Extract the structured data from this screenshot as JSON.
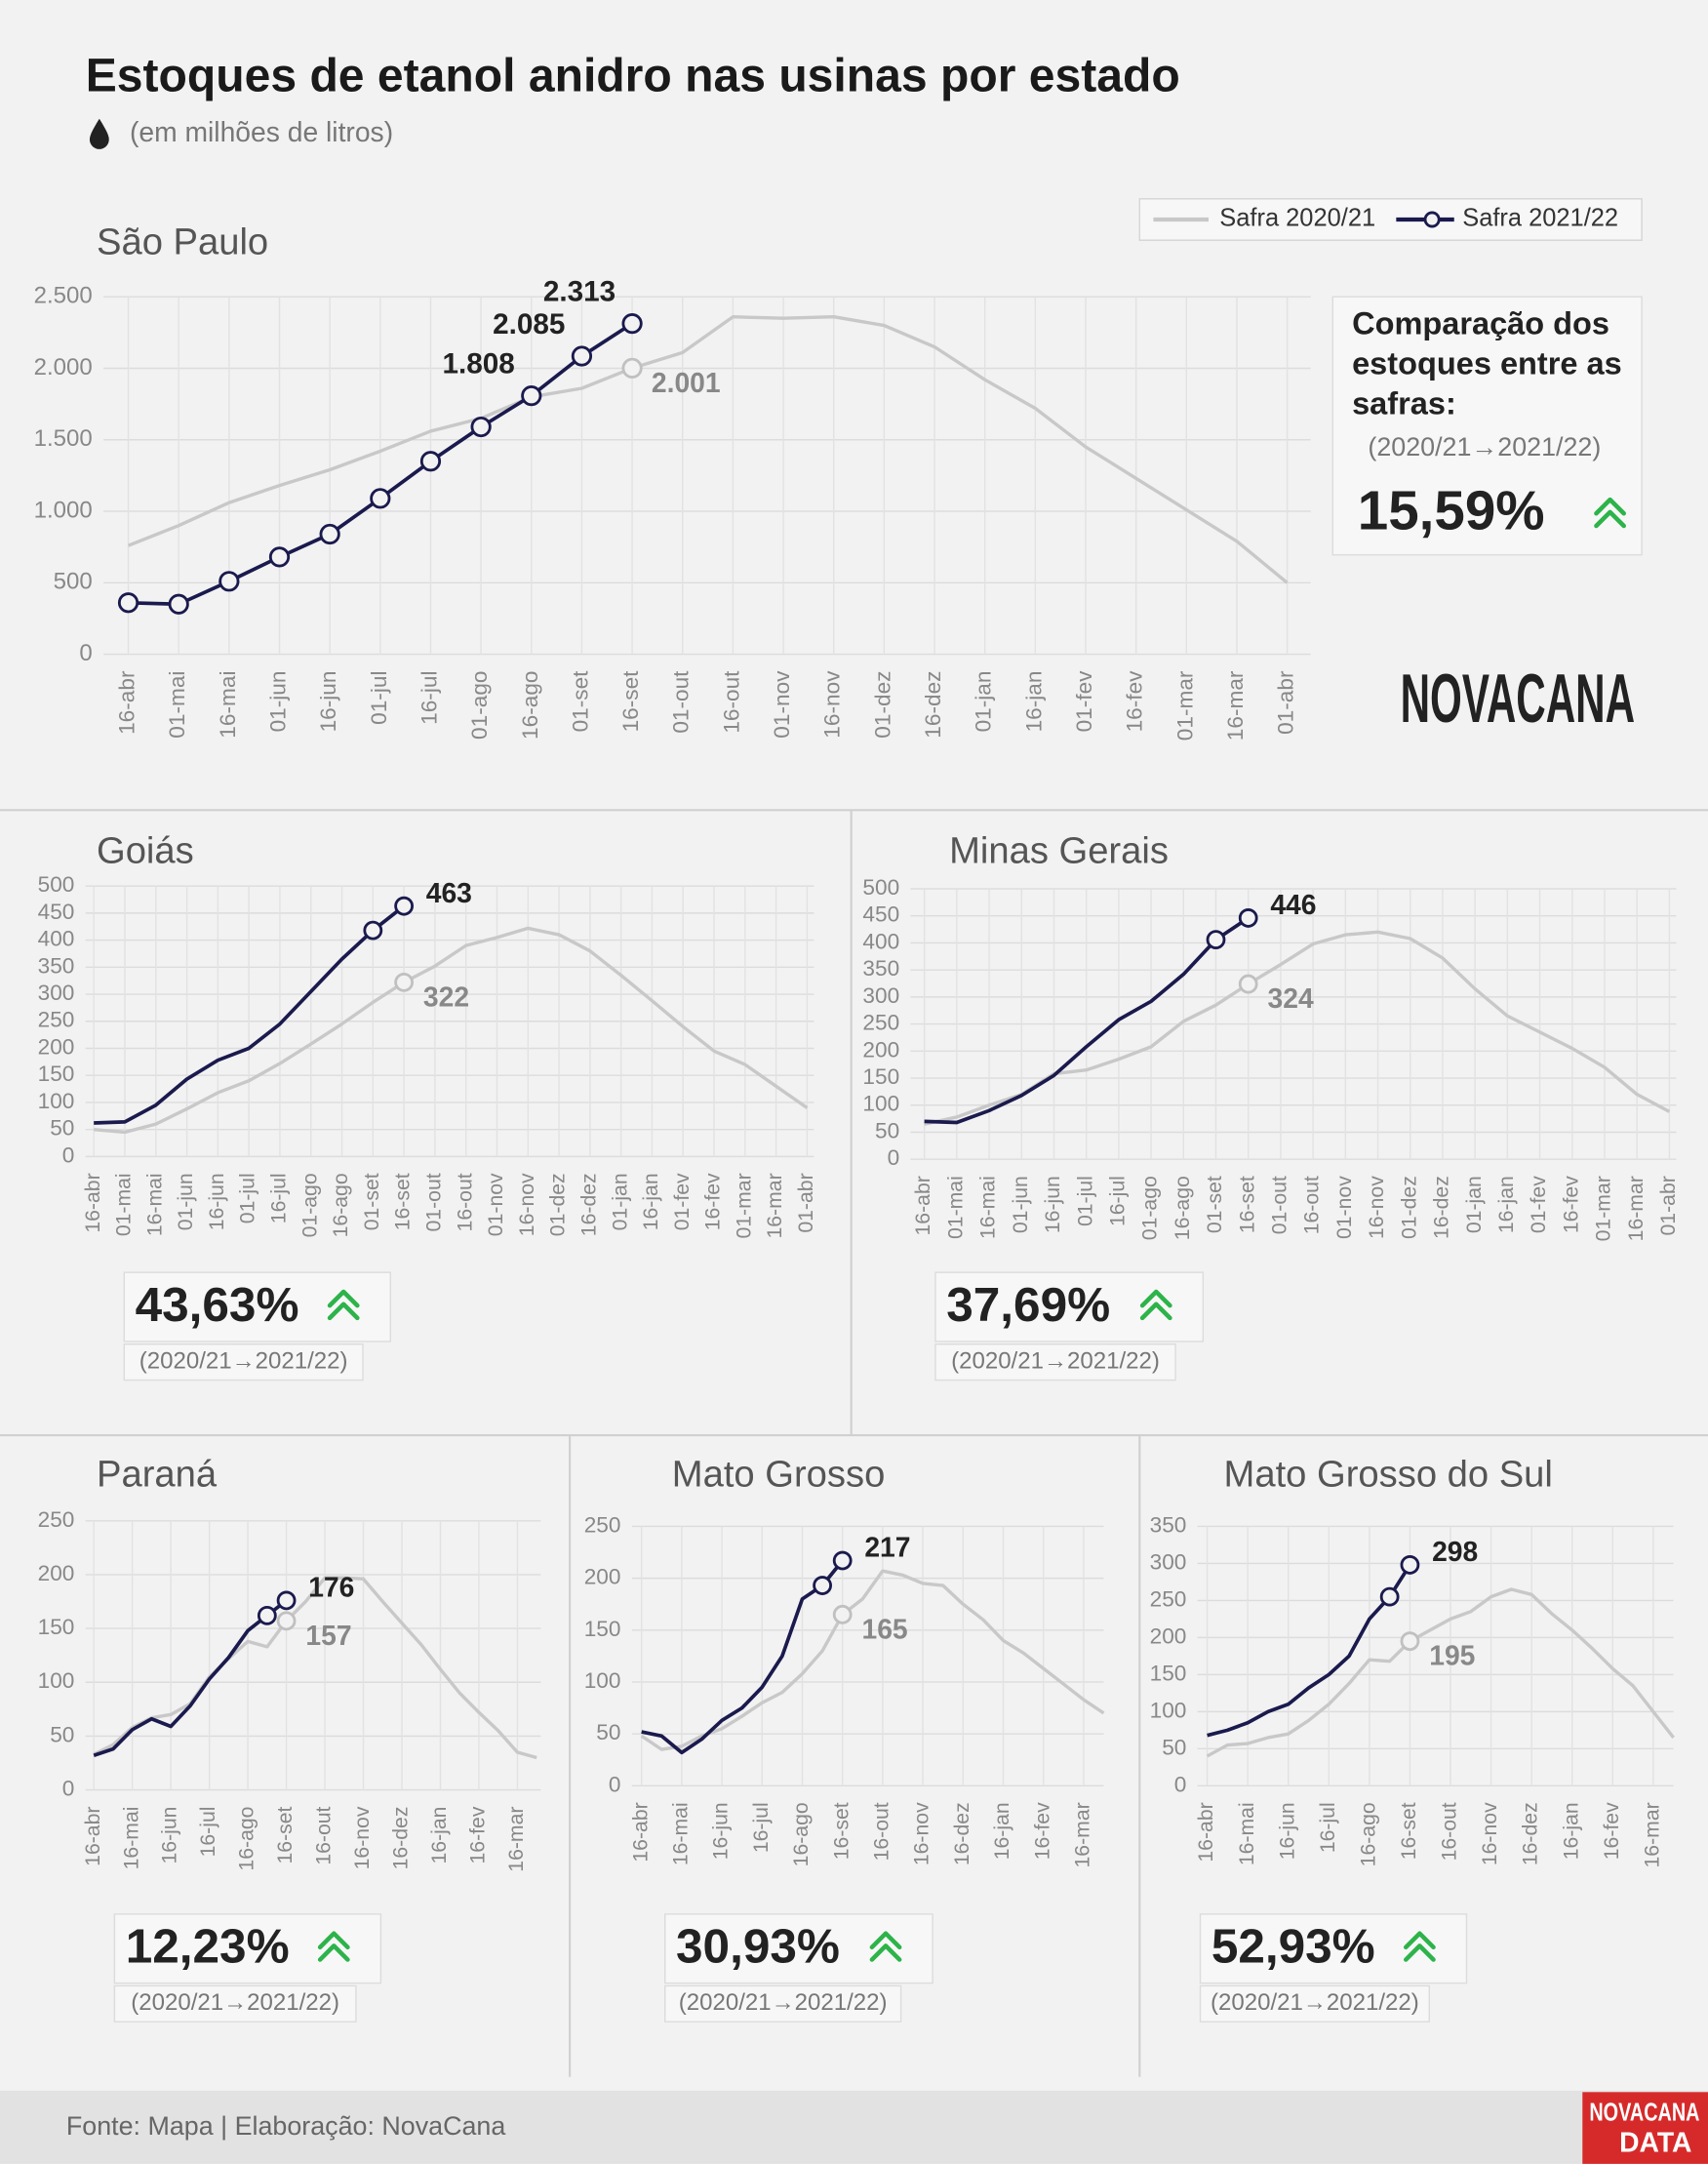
{
  "title": "Estoques de etanol anidro nas usinas por estado",
  "subtitle": "(em milhões de litros)",
  "logo": "NOVACANA",
  "footer": "Fonte: Mapa | Elaboração: NovaCana",
  "badge": [
    "NOVACANA",
    "DATA"
  ],
  "chart_data": [
    {
      "type": "line",
      "title": "São Paulo",
      "markers": true,
      "categories": [
        "16-abr",
        "01-mai",
        "16-mai",
        "01-jun",
        "16-jun",
        "01-jul",
        "16-jul",
        "01-ago",
        "16-ago",
        "01-set",
        "16-set",
        "01-out",
        "16-out",
        "01-nov",
        "16-nov",
        "01-dez",
        "16-dez",
        "01-jan",
        "16-jan",
        "01-fev",
        "16-fev",
        "01-mar",
        "16-mar",
        "01-abr"
      ],
      "series": [
        {
          "name": "Safra 2020/21",
          "color": "#c8c8c8",
          "values": [
            760,
            900,
            1060,
            1180,
            1290,
            1420,
            1560,
            1650,
            1800,
            1860,
            2001,
            2110,
            2360,
            2350,
            2360,
            2300,
            2150,
            1920,
            1720,
            1450,
            1230,
            1010,
            790,
            500
          ],
          "value_labels": [
            null,
            null,
            null,
            null,
            null,
            null,
            null,
            null,
            null,
            null,
            "2.001",
            null,
            null,
            null,
            null,
            null,
            null,
            null,
            null,
            null,
            null,
            null,
            null,
            null
          ]
        },
        {
          "name": "Safra 2021/22",
          "color": "#1a1a4e",
          "values": [
            360,
            350,
            510,
            680,
            840,
            1090,
            1350,
            1590,
            1808,
            2085,
            2313,
            null,
            null,
            null,
            null,
            null,
            null,
            null,
            null,
            null,
            null,
            null,
            null,
            null
          ],
          "value_labels": [
            null,
            null,
            null,
            null,
            null,
            null,
            null,
            null,
            "1.808",
            "2.085",
            "2.313",
            null,
            null,
            null,
            null,
            null,
            null,
            null,
            null,
            null,
            null,
            null,
            null,
            null
          ]
        }
      ],
      "ylim": [
        0,
        2500
      ],
      "yticks": [
        0,
        500,
        {
          "value": 1000,
          "label": "1.000"
        },
        {
          "value": 1500,
          "label": "1.500"
        },
        {
          "value": 2000,
          "label": "2.000"
        },
        {
          "value": 2500,
          "label": "2.500"
        }
      ],
      "grid": true,
      "comparison": {
        "title": "Comparação dos estoques entre as safras:",
        "period": "(2020/21→2021/22)",
        "value": "15,59%"
      }
    },
    {
      "type": "line",
      "title": "Goiás",
      "categories": [
        "16-abr",
        "01-mai",
        "16-mai",
        "01-jun",
        "16-jun",
        "01-jul",
        "16-jul",
        "01-ago",
        "16-ago",
        "01-set",
        "16-set",
        "01-out",
        "16-out",
        "01-nov",
        "16-nov",
        "01-dez",
        "16-dez",
        "01-jan",
        "16-jan",
        "01-fev",
        "16-fev",
        "01-mar",
        "16-mar",
        "01-abr"
      ],
      "series": [
        {
          "name": "Safra 2020/21",
          "color": "#c8c8c8",
          "values": [
            50,
            45,
            60,
            88,
            118,
            140,
            172,
            208,
            245,
            285,
            322,
            352,
            390,
            405,
            422,
            410,
            380,
            335,
            288,
            240,
            195,
            170,
            130,
            90
          ]
        },
        {
          "name": "Safra 2021/22",
          "color": "#1a1a4e",
          "values": [
            62,
            64,
            95,
            143,
            178,
            200,
            245,
            305,
            365,
            418,
            463,
            null,
            null,
            null,
            null,
            null,
            null,
            null,
            null,
            null,
            null,
            null,
            null,
            null
          ]
        }
      ],
      "ylim": [
        0,
        500
      ],
      "yticks": [
        0,
        50,
        100,
        150,
        200,
        250,
        300,
        350,
        400,
        450,
        500
      ],
      "grid": true,
      "comparison": {
        "period": "(2020/21→2021/22)",
        "value": "43,63%"
      }
    },
    {
      "type": "line",
      "title": "Minas Gerais",
      "categories": [
        "16-abr",
        "01-mai",
        "16-mai",
        "01-jun",
        "16-jun",
        "01-jul",
        "16-jul",
        "01-ago",
        "16-ago",
        "01-set",
        "16-set",
        "01-out",
        "16-out",
        "01-nov",
        "16-nov",
        "01-dez",
        "16-dez",
        "01-jan",
        "16-jan",
        "01-fev",
        "16-fev",
        "01-mar",
        "16-mar",
        "01-abr"
      ],
      "series": [
        {
          "name": "Safra 2020/21",
          "color": "#c8c8c8",
          "values": [
            65,
            78,
            100,
            120,
            158,
            165,
            185,
            208,
            255,
            285,
            324,
            360,
            398,
            415,
            420,
            408,
            372,
            315,
            265,
            235,
            205,
            170,
            120,
            88
          ]
        },
        {
          "name": "Safra 2021/22",
          "color": "#1a1a4e",
          "values": [
            70,
            68,
            90,
            118,
            155,
            208,
            258,
            292,
            342,
            406,
            446,
            null,
            null,
            null,
            null,
            null,
            null,
            null,
            null,
            null,
            null,
            null,
            null,
            null
          ]
        }
      ],
      "ylim": [
        0,
        500
      ],
      "yticks": [
        0,
        50,
        100,
        150,
        200,
        250,
        300,
        350,
        400,
        450,
        500
      ],
      "grid": true,
      "comparison": {
        "period": "(2020/21→2021/22)",
        "value": "37,69%"
      }
    },
    {
      "type": "line",
      "title": "Paraná",
      "categories": [
        "16-abr",
        null,
        "16-mai",
        null,
        "16-jun",
        null,
        "16-jul",
        null,
        "16-ago",
        null,
        "16-set",
        null,
        "16-out",
        null,
        "16-nov",
        null,
        "16-dez",
        null,
        "16-jan",
        null,
        "16-fev",
        null,
        "16-mar",
        null
      ],
      "series": [
        {
          "name": "Safra 2020/21",
          "color": "#c8c8c8",
          "values": [
            33,
            42,
            58,
            67,
            70,
            80,
            105,
            122,
            138,
            133,
            157,
            175,
            197,
            197,
            196,
            175,
            155,
            135,
            112,
            90,
            72,
            55,
            35,
            30
          ]
        },
        {
          "name": "Safra 2021/22",
          "color": "#1a1a4e",
          "values": [
            32,
            38,
            56,
            66,
            59,
            78,
            103,
            123,
            148,
            162,
            176,
            null,
            null,
            null,
            null,
            null,
            null,
            null,
            null,
            null,
            null,
            null,
            null,
            null
          ]
        }
      ],
      "ylim": [
        0,
        250
      ],
      "yticks": [
        0,
        50,
        100,
        150,
        200,
        250
      ],
      "grid": true,
      "comparison": {
        "period": "(2020/21→2021/22)",
        "value": "12,23%"
      }
    },
    {
      "type": "line",
      "title": "Mato Grosso",
      "categories": [
        "16-abr",
        null,
        "16-mai",
        null,
        "16-jun",
        null,
        "16-jul",
        null,
        "16-ago",
        null,
        "16-set",
        null,
        "16-out",
        null,
        "16-nov",
        null,
        "16-dez",
        null,
        "16-jan",
        null,
        "16-fev",
        null,
        "16-mar",
        null
      ],
      "series": [
        {
          "name": "Safra 2020/21",
          "color": "#c8c8c8",
          "values": [
            48,
            35,
            38,
            48,
            55,
            67,
            80,
            90,
            108,
            130,
            165,
            180,
            207,
            203,
            195,
            193,
            175,
            160,
            140,
            128,
            113,
            98,
            83,
            70
          ]
        },
        {
          "name": "Safra 2021/22",
          "color": "#1a1a4e",
          "values": [
            52,
            48,
            32,
            45,
            63,
            75,
            95,
            125,
            180,
            193,
            217,
            null,
            null,
            null,
            null,
            null,
            null,
            null,
            null,
            null,
            null,
            null,
            null,
            null
          ]
        }
      ],
      "ylim": [
        0,
        250
      ],
      "yticks": [
        0,
        50,
        100,
        150,
        200,
        250
      ],
      "grid": true,
      "comparison": {
        "period": "(2020/21→2021/22)",
        "value": "30,93%"
      }
    },
    {
      "type": "line",
      "title": "Mato Grosso do Sul",
      "categories": [
        "16-abr",
        null,
        "16-mai",
        null,
        "16-jun",
        null,
        "16-jul",
        null,
        "16-ago",
        null,
        "16-set",
        null,
        "16-out",
        null,
        "16-nov",
        null,
        "16-dez",
        null,
        "16-jan",
        null,
        "16-fev",
        null,
        "16-mar",
        null
      ],
      "series": [
        {
          "name": "Safra 2020/21",
          "color": "#c8c8c8",
          "values": [
            40,
            55,
            57,
            65,
            70,
            88,
            110,
            138,
            170,
            168,
            195,
            210,
            225,
            235,
            255,
            265,
            258,
            232,
            210,
            185,
            158,
            135,
            100,
            65
          ]
        },
        {
          "name": "Safra 2021/22",
          "color": "#1a1a4e",
          "values": [
            68,
            75,
            85,
            100,
            110,
            132,
            150,
            175,
            225,
            255,
            298,
            null,
            null,
            null,
            null,
            null,
            null,
            null,
            null,
            null,
            null,
            null,
            null,
            null
          ]
        }
      ],
      "ylim": [
        0,
        350
      ],
      "yticks": [
        0,
        50,
        100,
        150,
        200,
        250,
        300,
        350
      ],
      "grid": true,
      "comparison": {
        "period": "(2020/21→2021/22)",
        "value": "52,93%"
      }
    }
  ]
}
